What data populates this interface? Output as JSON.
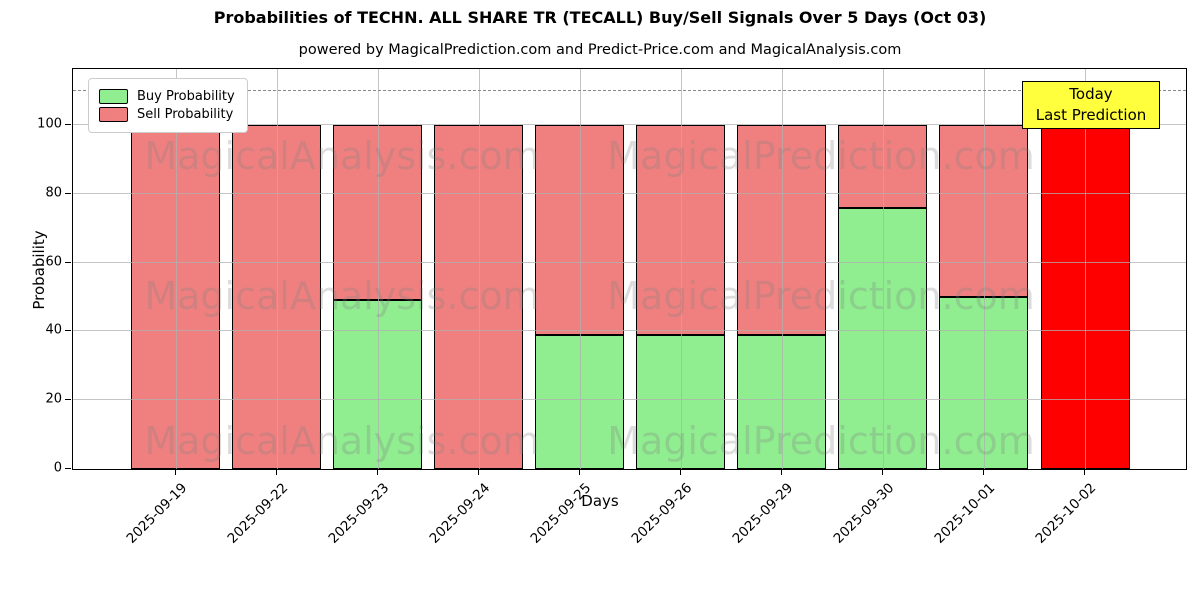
{
  "title": "Probabilities of TECHN. ALL SHARE TR (TECALL) Buy/Sell Signals Over 5 Days (Oct 03)",
  "subtitle": "powered by MagicalPrediction.com and Predict-Price.com and MagicalAnalysis.com",
  "axes": {
    "xlabel": "Days",
    "ylabel": "Probability",
    "yticks": [
      0,
      20,
      40,
      60,
      80,
      100
    ]
  },
  "legend": {
    "items": [
      {
        "label": "Buy Probability",
        "color": "#90ee90"
      },
      {
        "label": "Sell Probability",
        "color": "#f08080"
      }
    ]
  },
  "annotation_box": {
    "line1": "Today",
    "line2": "Last Prediction",
    "bg_color": "#ffff3d"
  },
  "watermarks": {
    "left": "MagicalAnalysis.com",
    "right": "MagicalPrediction.com"
  },
  "colors": {
    "buy": "#90ee90",
    "sell": "#f08080",
    "today_bar": "#ff0000",
    "grid": "#b0b0b0",
    "dashed_line": "#888888"
  },
  "chart_data": {
    "type": "bar",
    "stacked": true,
    "title": "Probabilities of TECHN. ALL SHARE TR (TECALL) Buy/Sell Signals Over 5 Days (Oct 03)",
    "xlabel": "Days",
    "ylabel": "Probability",
    "categories": [
      "2025-09-19",
      "2025-09-22",
      "2025-09-23",
      "2025-09-24",
      "2025-09-25",
      "2025-09-26",
      "2025-09-29",
      "2025-09-30",
      "2025-10-01",
      "2025-10-02"
    ],
    "series": [
      {
        "name": "Buy Probability",
        "color": "#90ee90",
        "values": [
          0,
          0,
          49,
          0,
          39,
          39,
          39,
          76,
          50,
          0
        ]
      },
      {
        "name": "Sell Probability",
        "color": "#f08080",
        "values": [
          100,
          100,
          51,
          100,
          61,
          61,
          61,
          24,
          50,
          0
        ]
      },
      {
        "name": "Today / Last Prediction",
        "color": "#ff0000",
        "values": [
          0,
          0,
          0,
          0,
          0,
          0,
          0,
          0,
          0,
          100
        ]
      }
    ],
    "ylim": [
      0,
      116.3
    ],
    "dashed_line_y": 110,
    "grid": true,
    "legend_position": "upper left"
  }
}
